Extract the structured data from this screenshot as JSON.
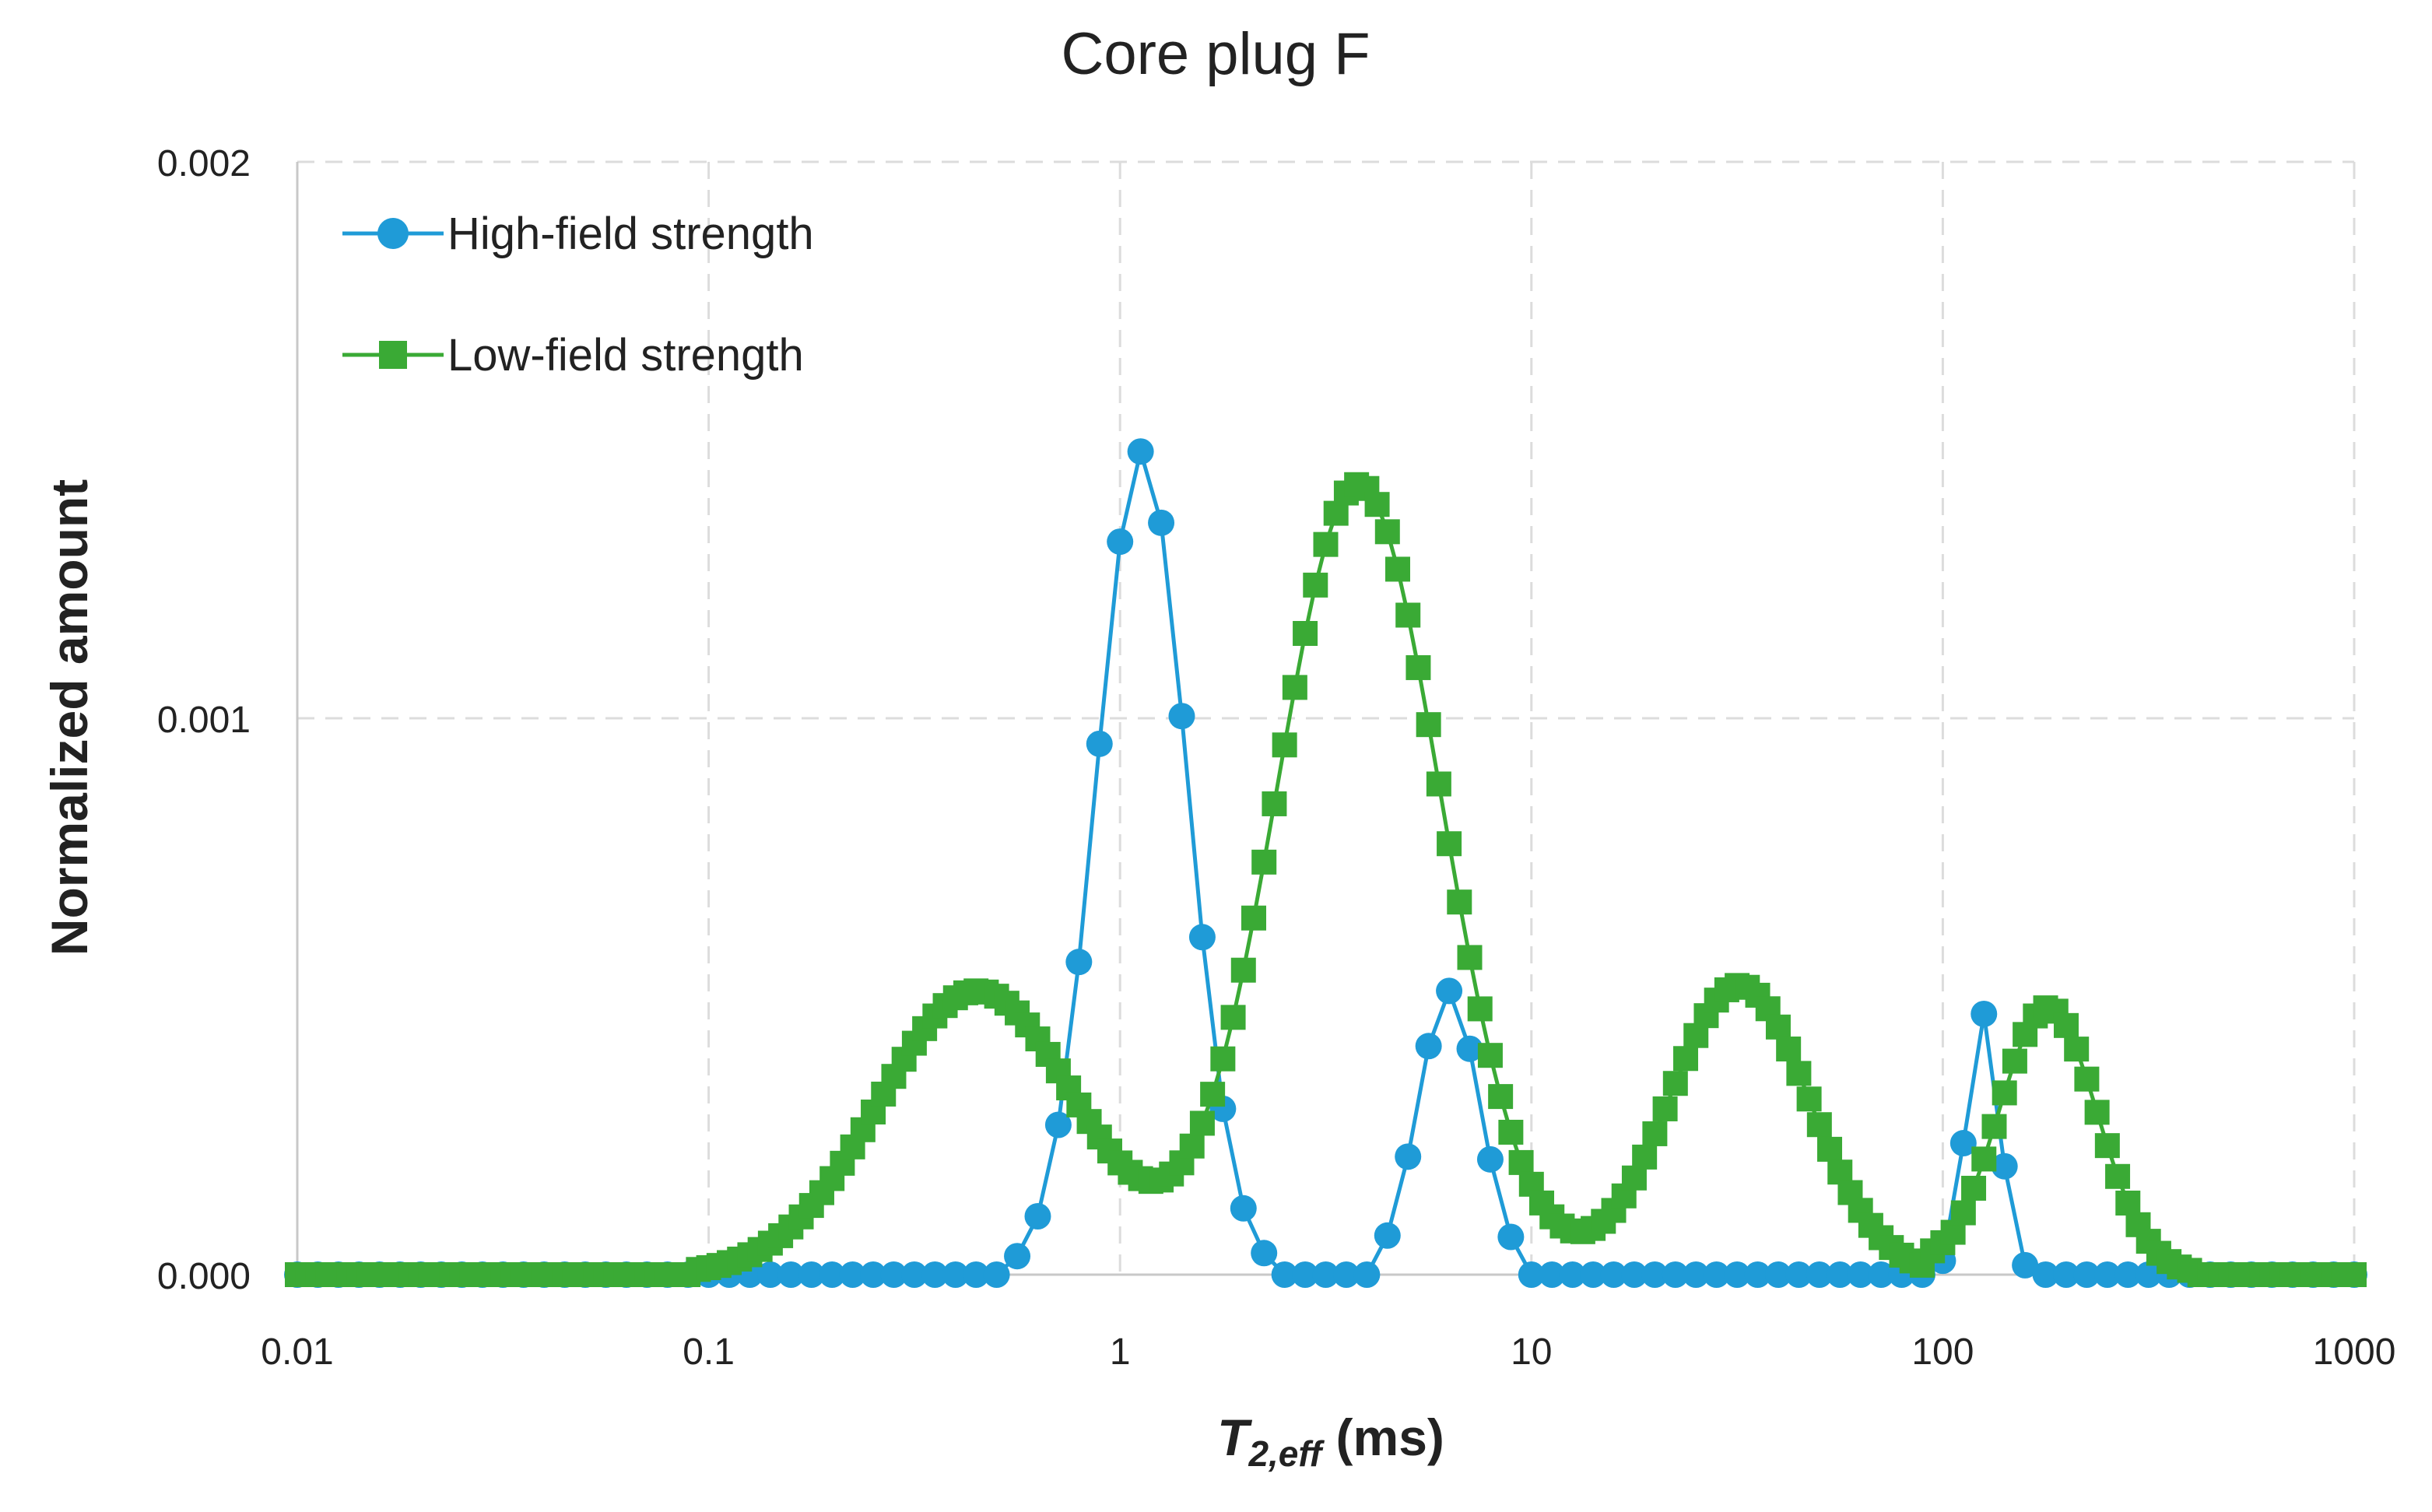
{
  "chart_data": {
    "type": "line",
    "title": "Core plug F",
    "x_scale": "log",
    "xlim": [
      0.01,
      1000
    ],
    "ylim": [
      0,
      0.002
    ],
    "x_ticks": [
      0.01,
      0.1,
      1,
      10,
      100,
      1000
    ],
    "x_tick_labels": [
      "0.01",
      "0.1",
      "1",
      "10",
      "100",
      "1000"
    ],
    "y_ticks": [
      0,
      0.001,
      0.002
    ],
    "y_tick_labels": [
      "0.000",
      "0.001",
      "0.002"
    ],
    "xlabel": {
      "main": "T",
      "sub": "2,eff",
      "unit": " (ms)"
    },
    "ylabel": "Normalized amount",
    "grid": true,
    "legend_position": "top-left",
    "colors": {
      "high": "#1f9bd7",
      "low": "#3aaa35",
      "grid": "#dcdcdc",
      "axis": "#c8c8c8"
    },
    "series": [
      {
        "name": "High-field strength",
        "marker": "circle",
        "color": "#1f9bd7",
        "points_per_decade": 20,
        "peaks": [
          {
            "center": 1.13,
            "amplitude": 0.00148,
            "width": 0.11,
            "cut_low": 0.55,
            "cut_high": 2.4
          },
          {
            "center": 6.3,
            "amplitude": 0.00051,
            "width": 0.075,
            "cut_low": 4.2,
            "cut_high": 9.0
          },
          {
            "center": 125,
            "amplitude": 0.00047,
            "width": 0.04,
            "cut_low": 100,
            "cut_high": 160
          }
        ]
      },
      {
        "name": "Low-field strength",
        "marker": "square",
        "color": "#3aaa35",
        "points_per_decade": 40,
        "peaks": [
          {
            "center": 0.45,
            "amplitude": 0.00051,
            "width": 0.24,
            "cut_low": 0.09,
            "cut_high": 30
          },
          {
            "center": 3.8,
            "amplitude": 0.00142,
            "width": 0.2,
            "cut_low": 0.4,
            "cut_high": 30
          },
          {
            "center": 32,
            "amplitude": 0.00052,
            "width": 0.17,
            "cut_low": 10,
            "cut_high": 100
          },
          {
            "center": 180,
            "amplitude": 0.00048,
            "width": 0.12,
            "cut_low": 90,
            "cut_high": 400
          }
        ]
      }
    ]
  }
}
